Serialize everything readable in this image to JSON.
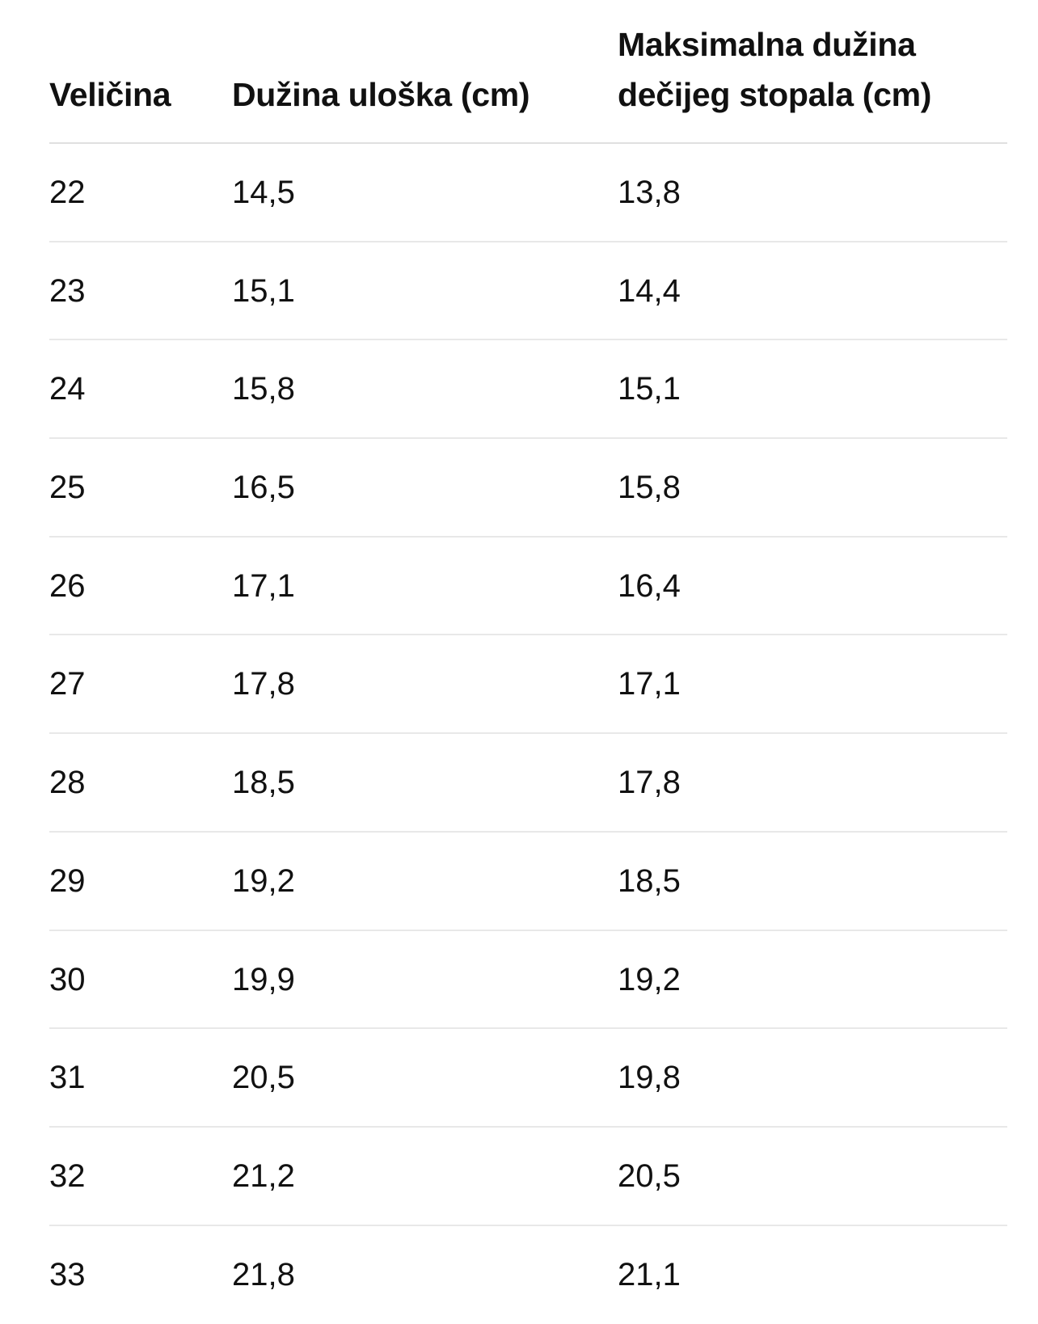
{
  "headers": [
    "Veličina",
    "Dužina uloška (cm)",
    "Maksimalna dužina dečijeg stopala (cm)"
  ],
  "header3_lines": [
    "Maksimalna dužina",
    "dečijeg stopala (cm)"
  ],
  "rows": [
    [
      "22",
      "14,5",
      "13,8"
    ],
    [
      "23",
      "15,1",
      "14,4"
    ],
    [
      "24",
      "15,8",
      "15,1"
    ],
    [
      "25",
      "16,5",
      "15,8"
    ],
    [
      "26",
      "17,1",
      "16,4"
    ],
    [
      "27",
      "17,8",
      "17,1"
    ],
    [
      "28",
      "18,5",
      "17,8"
    ],
    [
      "29",
      "19,2",
      "18,5"
    ],
    [
      "30",
      "19,9",
      "19,2"
    ],
    [
      "31",
      "20,5",
      "19,8"
    ],
    [
      "32",
      "21,2",
      "20,5"
    ],
    [
      "33",
      "21,8",
      "21,1"
    ]
  ]
}
